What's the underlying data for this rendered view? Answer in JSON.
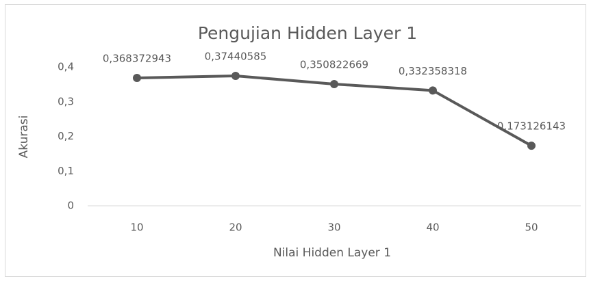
{
  "chart_data": {
    "type": "line",
    "title": "Pengujian Hidden Layer 1",
    "x_label": "Nilai Hidden Layer 1",
    "y_label": "Akurasi",
    "categories": [
      "10",
      "20",
      "30",
      "40",
      "50"
    ],
    "values": [
      0.368372943,
      0.37440585,
      0.350822669,
      0.332358318,
      0.173126143
    ],
    "value_labels": [
      "0,368372943",
      "0,37440585",
      "0,350822669",
      "0,332358318",
      "0,173126143"
    ],
    "color": "#595959",
    "ylim": [
      0,
      0.4
    ],
    "yticks": [
      0,
      {
        "value": 0.1,
        "label": "0,1"
      },
      {
        "value": 0.2,
        "label": "0,2"
      },
      {
        "value": 0.3,
        "label": "0,3"
      },
      {
        "value": 0.4,
        "label": "0,4"
      }
    ]
  }
}
